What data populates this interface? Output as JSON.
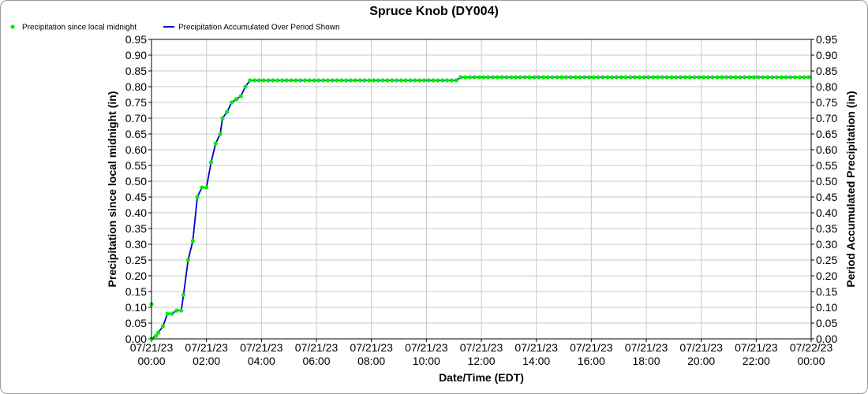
{
  "colors": {
    "points": "#00ee00",
    "line": "#0000cc",
    "grid": "#c8c8c8",
    "axis": "#000000"
  },
  "chart_data": {
    "type": "line",
    "title": "Spruce Knob (DY004)",
    "xlabel": "Date/Time (EDT)",
    "ylabel_left": "Precipitation since local midnight (in)",
    "ylabel_right": "Period Accumulated Precipitation (in)",
    "ylim": [
      0,
      0.95
    ],
    "yticks": [
      "0.00",
      "0.05",
      "0.10",
      "0.15",
      "0.20",
      "0.25",
      "0.30",
      "0.35",
      "0.40",
      "0.45",
      "0.50",
      "0.55",
      "0.60",
      "0.65",
      "0.70",
      "0.75",
      "0.80",
      "0.85",
      "0.90",
      "0.95"
    ],
    "xlim": [
      "07/21/23 00:00",
      "07/22/23 00:00"
    ],
    "xticks": [
      {
        "date": "07/21/23",
        "time": "00:00"
      },
      {
        "date": "07/21/23",
        "time": "02:00"
      },
      {
        "date": "07/21/23",
        "time": "04:00"
      },
      {
        "date": "07/21/23",
        "time": "06:00"
      },
      {
        "date": "07/21/23",
        "time": "08:00"
      },
      {
        "date": "07/21/23",
        "time": "10:00"
      },
      {
        "date": "07/21/23",
        "time": "12:00"
      },
      {
        "date": "07/21/23",
        "time": "14:00"
      },
      {
        "date": "07/21/23",
        "time": "16:00"
      },
      {
        "date": "07/21/23",
        "time": "18:00"
      },
      {
        "date": "07/21/23",
        "time": "20:00"
      },
      {
        "date": "07/21/23",
        "time": "22:00"
      },
      {
        "date": "07/22/23",
        "time": "00:00"
      }
    ],
    "grid": true,
    "legend_position": "top-left",
    "series": [
      {
        "name": "Precipitation since local midnight",
        "style": "points",
        "points": [
          [
            "07/21/23 00:00",
            0.11
          ],
          [
            "07/21/23 00:00",
            0.0
          ],
          [
            "07/21/23 00:10",
            0.01
          ],
          [
            "07/21/23 00:15",
            0.02
          ],
          [
            "07/21/23 00:25",
            0.04
          ],
          [
            "07/21/23 00:35",
            0.08
          ],
          [
            "07/21/23 00:45",
            0.08
          ],
          [
            "07/21/23 00:55",
            0.09
          ],
          [
            "07/21/23 01:05",
            0.09
          ],
          [
            "07/21/23 01:10",
            0.14
          ],
          [
            "07/21/23 01:20",
            0.25
          ],
          [
            "07/21/23 01:30",
            0.31
          ],
          [
            "07/21/23 01:40",
            0.45
          ],
          [
            "07/21/23 01:50",
            0.48
          ],
          [
            "07/21/23 02:00",
            0.48
          ],
          [
            "07/21/23 02:10",
            0.56
          ],
          [
            "07/21/23 02:20",
            0.62
          ],
          [
            "07/21/23 02:30",
            0.65
          ],
          [
            "07/21/23 02:35",
            0.7
          ],
          [
            "07/21/23 02:45",
            0.72
          ],
          [
            "07/21/23 02:55",
            0.75
          ],
          [
            "07/21/23 03:05",
            0.76
          ],
          [
            "07/21/23 03:15",
            0.77
          ],
          [
            "07/21/23 03:25",
            0.8
          ],
          [
            "07/21/23 03:35",
            0.82
          ],
          [
            "07/21/23 03:45",
            0.82
          ],
          [
            "07/21/23 03:55",
            0.82
          ],
          [
            "07/21/23 04:05",
            0.82
          ],
          [
            "07/21/23 04:15",
            0.82
          ],
          [
            "07/21/23 04:25",
            0.82
          ],
          [
            "07/21/23 04:35",
            0.82
          ],
          [
            "07/21/23 04:45",
            0.82
          ],
          [
            "07/21/23 04:55",
            0.82
          ],
          [
            "07/21/23 05:05",
            0.82
          ],
          [
            "07/21/23 05:15",
            0.82
          ],
          [
            "07/21/23 05:25",
            0.82
          ],
          [
            "07/21/23 05:35",
            0.82
          ],
          [
            "07/21/23 05:45",
            0.82
          ],
          [
            "07/21/23 05:55",
            0.82
          ],
          [
            "07/21/23 06:05",
            0.82
          ],
          [
            "07/21/23 06:15",
            0.82
          ],
          [
            "07/21/23 06:25",
            0.82
          ],
          [
            "07/21/23 06:35",
            0.82
          ],
          [
            "07/21/23 06:45",
            0.82
          ],
          [
            "07/21/23 06:55",
            0.82
          ],
          [
            "07/21/23 07:05",
            0.82
          ],
          [
            "07/21/23 07:15",
            0.82
          ],
          [
            "07/21/23 07:25",
            0.82
          ],
          [
            "07/21/23 07:35",
            0.82
          ],
          [
            "07/21/23 07:45",
            0.82
          ],
          [
            "07/21/23 07:55",
            0.82
          ],
          [
            "07/21/23 08:05",
            0.82
          ],
          [
            "07/21/23 08:15",
            0.82
          ],
          [
            "07/21/23 08:25",
            0.82
          ],
          [
            "07/21/23 08:35",
            0.82
          ],
          [
            "07/21/23 08:45",
            0.82
          ],
          [
            "07/21/23 08:55",
            0.82
          ],
          [
            "07/21/23 09:05",
            0.82
          ],
          [
            "07/21/23 09:15",
            0.82
          ],
          [
            "07/21/23 09:25",
            0.82
          ],
          [
            "07/21/23 09:35",
            0.82
          ],
          [
            "07/21/23 09:45",
            0.82
          ],
          [
            "07/21/23 09:55",
            0.82
          ],
          [
            "07/21/23 10:05",
            0.82
          ],
          [
            "07/21/23 10:15",
            0.82
          ],
          [
            "07/21/23 10:25",
            0.82
          ],
          [
            "07/21/23 10:35",
            0.82
          ],
          [
            "07/21/23 10:45",
            0.82
          ],
          [
            "07/21/23 10:55",
            0.82
          ],
          [
            "07/21/23 11:05",
            0.82
          ],
          [
            "07/21/23 11:15",
            0.83
          ],
          [
            "07/21/23 11:25",
            0.83
          ],
          [
            "07/21/23 11:35",
            0.83
          ],
          [
            "07/21/23 11:45",
            0.83
          ],
          [
            "07/21/23 11:55",
            0.83
          ],
          [
            "07/21/23 12:05",
            0.83
          ],
          [
            "07/21/23 12:15",
            0.83
          ],
          [
            "07/21/23 12:25",
            0.83
          ],
          [
            "07/21/23 12:35",
            0.83
          ],
          [
            "07/21/23 12:45",
            0.83
          ],
          [
            "07/21/23 12:55",
            0.83
          ],
          [
            "07/21/23 13:05",
            0.83
          ],
          [
            "07/21/23 13:15",
            0.83
          ],
          [
            "07/21/23 13:25",
            0.83
          ],
          [
            "07/21/23 13:35",
            0.83
          ],
          [
            "07/21/23 13:45",
            0.83
          ],
          [
            "07/21/23 13:55",
            0.83
          ],
          [
            "07/21/23 14:05",
            0.83
          ],
          [
            "07/21/23 14:15",
            0.83
          ],
          [
            "07/21/23 14:25",
            0.83
          ],
          [
            "07/21/23 14:35",
            0.83
          ],
          [
            "07/21/23 14:45",
            0.83
          ],
          [
            "07/21/23 14:55",
            0.83
          ],
          [
            "07/21/23 15:05",
            0.83
          ],
          [
            "07/21/23 15:15",
            0.83
          ],
          [
            "07/21/23 15:25",
            0.83
          ],
          [
            "07/21/23 15:35",
            0.83
          ],
          [
            "07/21/23 15:45",
            0.83
          ],
          [
            "07/21/23 15:55",
            0.83
          ],
          [
            "07/21/23 16:05",
            0.83
          ],
          [
            "07/21/23 16:15",
            0.83
          ],
          [
            "07/21/23 16:25",
            0.83
          ],
          [
            "07/21/23 16:35",
            0.83
          ],
          [
            "07/21/23 16:45",
            0.83
          ],
          [
            "07/21/23 16:55",
            0.83
          ],
          [
            "07/21/23 17:05",
            0.83
          ],
          [
            "07/21/23 17:15",
            0.83
          ],
          [
            "07/21/23 17:25",
            0.83
          ],
          [
            "07/21/23 17:35",
            0.83
          ],
          [
            "07/21/23 17:45",
            0.83
          ],
          [
            "07/21/23 17:55",
            0.83
          ],
          [
            "07/21/23 18:05",
            0.83
          ],
          [
            "07/21/23 18:15",
            0.83
          ],
          [
            "07/21/23 18:25",
            0.83
          ],
          [
            "07/21/23 18:35",
            0.83
          ],
          [
            "07/21/23 18:45",
            0.83
          ],
          [
            "07/21/23 18:55",
            0.83
          ],
          [
            "07/21/23 19:05",
            0.83
          ],
          [
            "07/21/23 19:15",
            0.83
          ],
          [
            "07/21/23 19:25",
            0.83
          ],
          [
            "07/21/23 19:35",
            0.83
          ],
          [
            "07/21/23 19:45",
            0.83
          ],
          [
            "07/21/23 19:55",
            0.83
          ],
          [
            "07/21/23 20:05",
            0.83
          ],
          [
            "07/21/23 20:15",
            0.83
          ],
          [
            "07/21/23 20:25",
            0.83
          ],
          [
            "07/21/23 20:35",
            0.83
          ],
          [
            "07/21/23 20:45",
            0.83
          ],
          [
            "07/21/23 20:55",
            0.83
          ],
          [
            "07/21/23 21:05",
            0.83
          ],
          [
            "07/21/23 21:15",
            0.83
          ],
          [
            "07/21/23 21:25",
            0.83
          ],
          [
            "07/21/23 21:35",
            0.83
          ],
          [
            "07/21/23 21:45",
            0.83
          ],
          [
            "07/21/23 21:55",
            0.83
          ],
          [
            "07/21/23 22:05",
            0.83
          ],
          [
            "07/21/23 22:15",
            0.83
          ],
          [
            "07/21/23 22:25",
            0.83
          ],
          [
            "07/21/23 22:35",
            0.83
          ],
          [
            "07/21/23 22:45",
            0.83
          ],
          [
            "07/21/23 22:55",
            0.83
          ],
          [
            "07/21/23 23:05",
            0.83
          ],
          [
            "07/21/23 23:15",
            0.83
          ],
          [
            "07/21/23 23:25",
            0.83
          ],
          [
            "07/21/23 23:35",
            0.83
          ],
          [
            "07/21/23 23:45",
            0.83
          ],
          [
            "07/21/23 23:55",
            0.83
          ]
        ]
      },
      {
        "name": "Precipitation Accumulated Over Period Shown",
        "style": "line",
        "points": [
          [
            "07/21/23 00:00",
            0.0
          ],
          [
            "07/21/23 00:10",
            0.01
          ],
          [
            "07/21/23 00:15",
            0.02
          ],
          [
            "07/21/23 00:25",
            0.04
          ],
          [
            "07/21/23 00:35",
            0.08
          ],
          [
            "07/21/23 00:45",
            0.08
          ],
          [
            "07/21/23 00:55",
            0.09
          ],
          [
            "07/21/23 01:05",
            0.09
          ],
          [
            "07/21/23 01:10",
            0.14
          ],
          [
            "07/21/23 01:20",
            0.25
          ],
          [
            "07/21/23 01:30",
            0.31
          ],
          [
            "07/21/23 01:40",
            0.45
          ],
          [
            "07/21/23 01:50",
            0.48
          ],
          [
            "07/21/23 02:00",
            0.48
          ],
          [
            "07/21/23 02:10",
            0.56
          ],
          [
            "07/21/23 02:20",
            0.62
          ],
          [
            "07/21/23 02:30",
            0.65
          ],
          [
            "07/21/23 02:35",
            0.7
          ],
          [
            "07/21/23 02:45",
            0.72
          ],
          [
            "07/21/23 02:55",
            0.75
          ],
          [
            "07/21/23 03:05",
            0.76
          ],
          [
            "07/21/23 03:15",
            0.77
          ],
          [
            "07/21/23 03:25",
            0.8
          ],
          [
            "07/21/23 03:35",
            0.82
          ],
          [
            "07/21/23 11:05",
            0.82
          ],
          [
            "07/21/23 11:15",
            0.83
          ],
          [
            "07/22/23 00:00",
            0.83
          ]
        ]
      }
    ]
  }
}
